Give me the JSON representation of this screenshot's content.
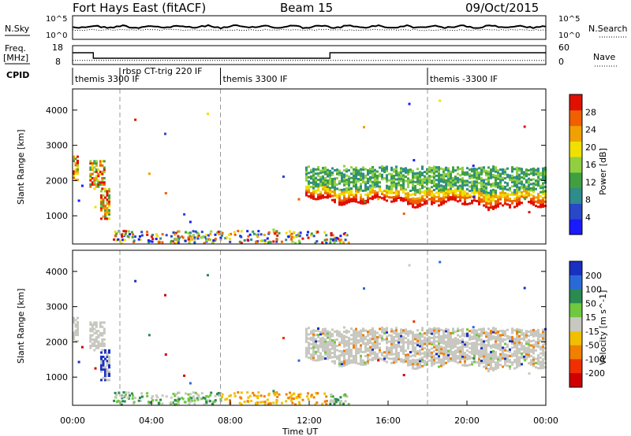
{
  "header": {
    "title": "Fort Hays East (fitACF)",
    "beam": "Beam 15",
    "date": "09/Oct/2015"
  },
  "side_labels": {
    "nsky": "N.Sky",
    "freq_line1": "Freq.",
    "freq_line2": "[MHz]",
    "cpid": "CPID",
    "nsearch": "N.Search",
    "nave": "Nave"
  },
  "noise_panel": {
    "left_ticks": [
      "10^5",
      "10^0"
    ],
    "right_ticks": [
      "10^5",
      "10^0"
    ]
  },
  "freq_panel": {
    "left_ticks": [
      "18",
      "8"
    ],
    "right_ticks": [
      "60",
      "0"
    ],
    "freq_steps": [
      [
        0,
        14.5
      ],
      [
        1.05,
        11.0
      ],
      [
        13.05,
        14.5
      ],
      [
        24,
        14.5
      ]
    ],
    "nave_level": 8
  },
  "cpid_segments": [
    {
      "start": 0.0,
      "label": "themis 3300 IF"
    },
    {
      "start": 2.4,
      "label": "rbsp CT-trig 220 IF"
    },
    {
      "start": 7.5,
      "label": "themis 3300 IF"
    },
    {
      "start": 18.0,
      "label": "themis -3300 IF"
    }
  ],
  "chart_data": [
    {
      "type": "heatmap",
      "panel": "power",
      "ylabel": "Slant Range [km]",
      "yticks": [
        "1000",
        "2000",
        "3000",
        "4000"
      ],
      "ylim": [
        200,
        4600
      ],
      "xlim": [
        0,
        24
      ],
      "colorbar_label": "Power [dB]",
      "colorbar_ticks": [
        "4",
        "8",
        "12",
        "16",
        "20",
        "24",
        "28"
      ],
      "colors": [
        "#1a1aff",
        "#2848c8",
        "#2e8c8c",
        "#40a040",
        "#90d040",
        "#f0e000",
        "#f0a000",
        "#f06000",
        "#e01000"
      ],
      "regions": [
        {
          "t0": 0.0,
          "t1": 0.3,
          "r0": 2050,
          "r1": 2750,
          "note": "patch"
        },
        {
          "t0": 0.85,
          "t1": 1.6,
          "r0": 1800,
          "r1": 2600,
          "note": "patch"
        },
        {
          "t0": 1.4,
          "t1": 1.9,
          "r0": 950,
          "r1": 1800,
          "note": "patch"
        },
        {
          "t0": 11.8,
          "t1": 24.0,
          "r0": 1300,
          "r1": 2600,
          "note": "band"
        }
      ]
    },
    {
      "type": "heatmap",
      "panel": "velocity",
      "ylabel": "Slant Range [km]",
      "yticks": [
        "1000",
        "2000",
        "3000",
        "4000"
      ],
      "ylim": [
        200,
        4600
      ],
      "xlim": [
        0,
        24
      ],
      "xlabel": "Time UT",
      "xticks": [
        "00:00",
        "04:00",
        "08:00",
        "12:00",
        "16:00",
        "20:00",
        "00:00"
      ],
      "colorbar_label": "Velocity [m s^-1]",
      "colorbar_ticks": [
        "200",
        "100",
        "50",
        "15",
        "-15",
        "-50",
        "-100",
        "-200"
      ],
      "colors": [
        "#1a30c0",
        "#2a6ad8",
        "#2a8a50",
        "#70c840",
        "#c8c8c0",
        "#f0c000",
        "#f08000",
        "#f03000",
        "#d00000"
      ]
    }
  ],
  "vertical_markers": [
    2.4,
    7.5,
    18.0
  ]
}
